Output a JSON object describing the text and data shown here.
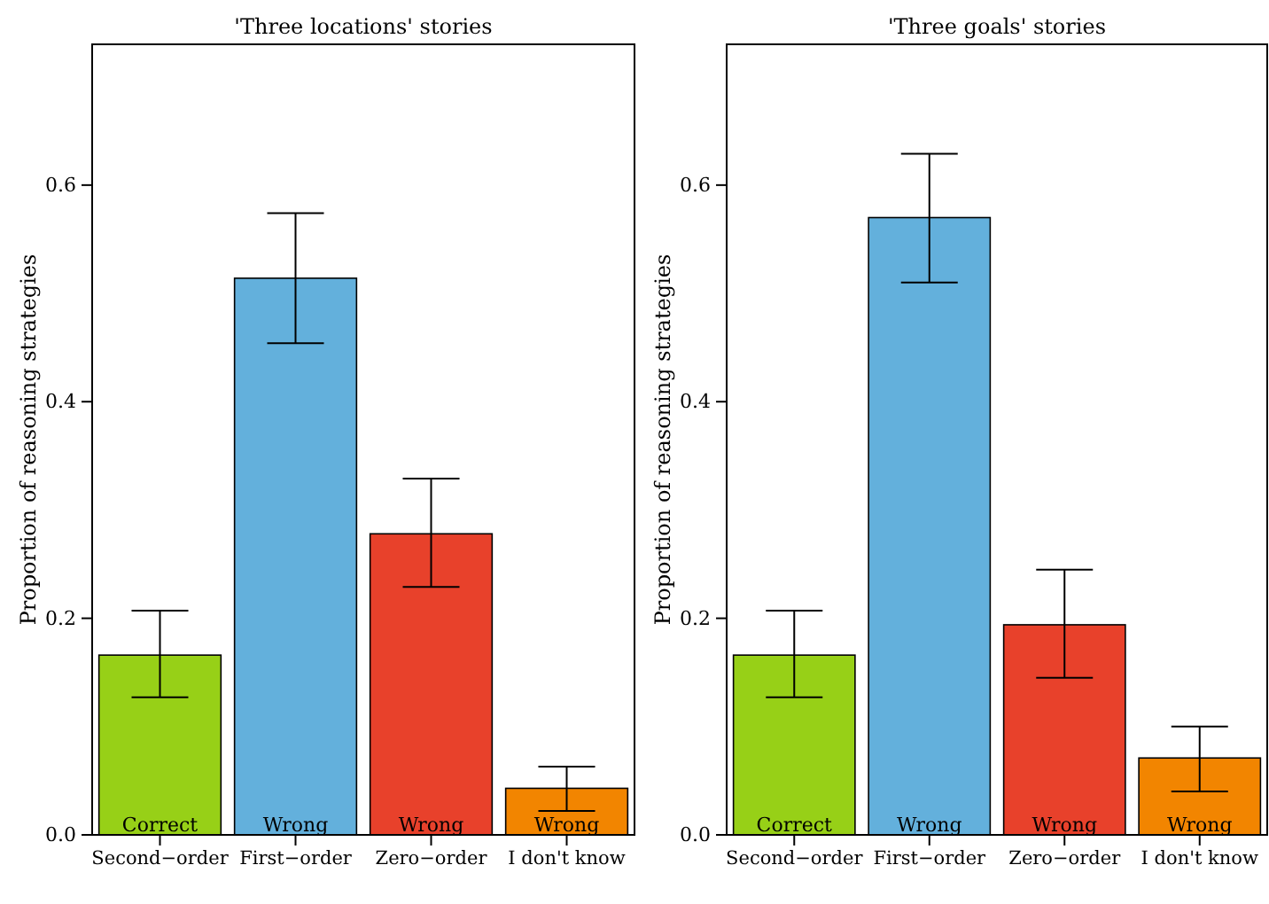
{
  "chart_data": [
    {
      "type": "bar",
      "title": "'Three locations' stories",
      "ylabel": "Proportion of reasoning strategies",
      "categories": [
        "Second−order",
        "First−order",
        "Zero−order",
        "I don't know"
      ],
      "values": [
        0.166,
        0.514,
        0.278,
        0.043
      ],
      "colors": [
        "#97d017",
        "#63b0dc",
        "#e8412b",
        "#f28500"
      ],
      "errors": [
        [
          0.127,
          0.207
        ],
        [
          0.454,
          0.574
        ],
        [
          0.229,
          0.329
        ],
        [
          0.022,
          0.063
        ]
      ],
      "ylim": [
        0,
        0.73
      ],
      "yticks": [
        {
          "value": 0,
          "label": "0.0"
        },
        {
          "value": 0.2,
          "label": "0.2"
        },
        {
          "value": 0.4,
          "label": "0.4"
        },
        {
          "value": 0.6,
          "label": "0.6"
        }
      ],
      "grid": false,
      "annotations": [
        {
          "text": "Correct",
          "x": "Second−order",
          "y": 0
        },
        {
          "text": "Wrong",
          "x": "First−order",
          "y": 0
        },
        {
          "text": "Wrong",
          "x": "Zero−order",
          "y": 0
        },
        {
          "text": "Wrong",
          "x": "I don't know",
          "y": 0
        }
      ]
    },
    {
      "type": "bar",
      "title": "'Three goals' stories",
      "ylabel": "Proportion of reasoning strategies",
      "categories": [
        "Second−order",
        "First−order",
        "Zero−order",
        "I don't know"
      ],
      "values": [
        0.166,
        0.57,
        0.194,
        0.071
      ],
      "colors": [
        "#97d017",
        "#63b0dc",
        "#e8412b",
        "#f28500"
      ],
      "errors": [
        [
          0.127,
          0.207
        ],
        [
          0.51,
          0.629
        ],
        [
          0.145,
          0.245
        ],
        [
          0.04,
          0.1
        ]
      ],
      "ylim": [
        0,
        0.73
      ],
      "yticks": [
        {
          "value": 0,
          "label": "0.0"
        },
        {
          "value": 0.2,
          "label": "0.2"
        },
        {
          "value": 0.4,
          "label": "0.4"
        },
        {
          "value": 0.6,
          "label": "0.6"
        }
      ],
      "grid": false,
      "annotations": [
        {
          "text": "Correct",
          "x": "Second−order",
          "y": 0
        },
        {
          "text": "Wrong",
          "x": "First−order",
          "y": 0
        },
        {
          "text": "Wrong",
          "x": "Zero−order",
          "y": 0
        },
        {
          "text": "Wrong",
          "x": "I don't know",
          "y": 0
        }
      ]
    }
  ]
}
